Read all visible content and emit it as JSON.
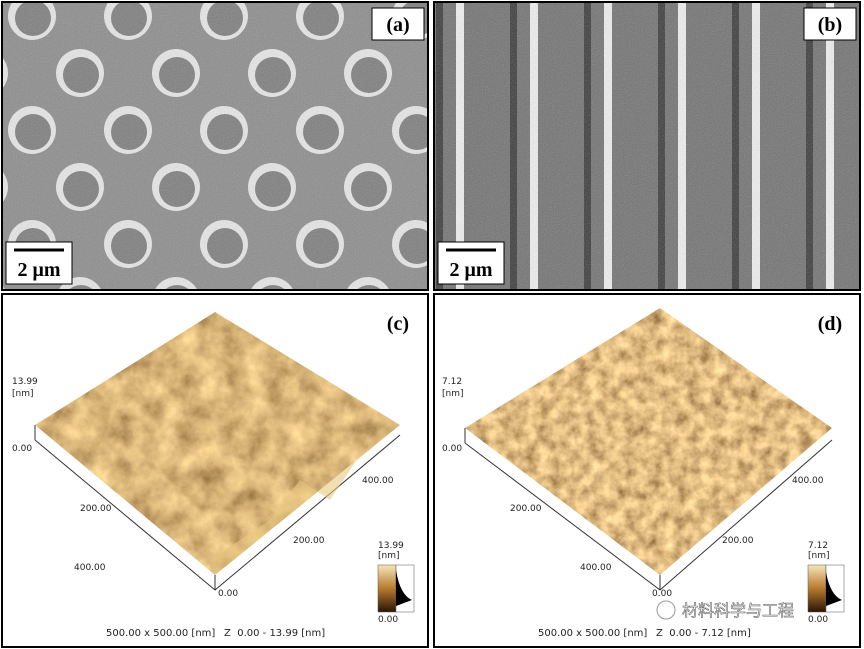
{
  "panels": [
    {
      "label": "(a)",
      "scale_bar": "2 μm"
    },
    {
      "label": "(b)",
      "scale_bar": "2 μm"
    },
    {
      "label": "(c)",
      "z_max": "13.99",
      "z_unit": "[nm]",
      "z_min": "0.00",
      "left_axis": [
        "200.00",
        "400.00"
      ],
      "origin": "0.00",
      "right_axis": [
        "200.00",
        "400.00"
      ],
      "colorbar_max": "13.99",
      "colorbar_unit": "[nm]",
      "colorbar_min": "0.00",
      "caption_size": "500.00 x 500.00 [nm]",
      "caption_z": "Z  0.00 - 13.99 [nm]"
    },
    {
      "label": "(d)",
      "z_max": "7.12",
      "z_unit": "[nm]",
      "z_min": "0.00",
      "left_axis": [
        "200.00",
        "400.00"
      ],
      "origin": "0.00",
      "right_axis": [
        "200.00",
        "400.00"
      ],
      "colorbar_max": "7.12",
      "colorbar_unit": "[nm]",
      "colorbar_min": "0.00",
      "caption_size": "500.00 x 500.00 [nm]",
      "caption_z": "Z  0.00 - 7.12 [nm]"
    }
  ],
  "watermark": "材料科学与工程"
}
